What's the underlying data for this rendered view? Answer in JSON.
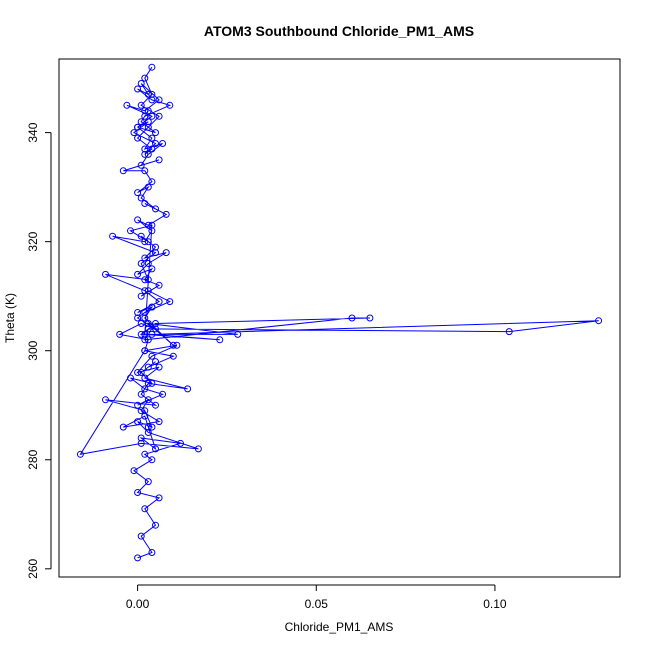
{
  "chart_data": {
    "type": "line",
    "markers": "open-circle",
    "title": "ATOM3 Southbound Chloride_PM1_AMS",
    "xlabel": "Chloride_PM1_AMS",
    "ylabel": "Theta (K)",
    "xlim": [
      -0.022,
      0.135
    ],
    "ylim": [
      258.5,
      353.5
    ],
    "xticks": [
      0.0,
      0.05,
      0.1
    ],
    "xtick_labels": [
      "0.00",
      "0.05",
      "0.10"
    ],
    "yticks": [
      260,
      280,
      300,
      320,
      340
    ],
    "ytick_labels": [
      "260",
      "280",
      "300",
      "320",
      "340"
    ],
    "grid": false,
    "legend": "none",
    "color": "#0000ff",
    "series": [
      {
        "x": [
          0.0,
          0.004,
          0.001,
          0.005,
          0.002,
          0.006,
          0.0,
          0.003,
          -0.001,
          0.004,
          0.002,
          0.012,
          0.001,
          0.005,
          0.003,
          0.002,
          -0.004,
          0.006,
          0.001,
          0.003,
          0.0,
          0.007,
          0.002,
          -0.002,
          0.004,
          0.001,
          0.005,
          0.003,
          0.01,
          0.002,
          -0.016,
          0.001,
          0.017,
          0.003,
          0.0,
          0.004,
          0.002,
          -0.009,
          0.005,
          0.001,
          0.003,
          0.014,
          0.002,
          0.006,
          0.0,
          0.004,
          0.011,
          0.002,
          0.003,
          -0.005,
          0.001,
          0.005,
          0.0,
          0.004,
          0.002,
          0.009,
          0.003,
          0.001,
          0.006,
          0.002,
          0.004,
          0.0,
          0.003,
          0.008,
          0.002,
          0.005,
          0.001,
          0.003,
          -0.002,
          0.004,
          0.002,
          0.023,
          0.004,
          0.129,
          0.104,
          0.003,
          0.002,
          0.06,
          0.065,
          0.005,
          0.001,
          0.028,
          0.003,
          0.01,
          0.002,
          0.004,
          0.0,
          0.006,
          0.002,
          -0.009,
          0.003,
          0.001,
          0.005,
          -0.007,
          0.002,
          0.004,
          0.0,
          0.003,
          0.008,
          0.002,
          0.005,
          0.001,
          0.003,
          0.0,
          0.004,
          0.002,
          -0.004,
          0.006,
          0.001,
          0.003,
          0.007,
          0.002,
          0.004,
          0.0,
          0.005,
          0.001,
          0.003,
          0.002,
          0.009,
          0.004,
          0.0,
          0.003,
          0.001,
          0.006,
          0.002,
          -0.003,
          0.004,
          0.0,
          0.003,
          -0.001,
          0.005,
          0.002,
          0.004,
          0.0,
          0.003,
          0.006,
          0.001,
          0.004,
          0.002,
          0.004
        ],
        "y": [
          262,
          263,
          266,
          268,
          271,
          273,
          274,
          276,
          278,
          280,
          281,
          283,
          284,
          282,
          286,
          288,
          286,
          287,
          289,
          291,
          290,
          292,
          293,
          295,
          294,
          296,
          298,
          297,
          299,
          300,
          281,
          283,
          282,
          285,
          287,
          286,
          289,
          291,
          290,
          292,
          294,
          293,
          295,
          297,
          296,
          299,
          301,
          300,
          302,
          303,
          305,
          304,
          306,
          308,
          307,
          309,
          311,
          310,
          312,
          313,
          315,
          314,
          316,
          318,
          317,
          319,
          321,
          320,
          322,
          323,
          303,
          302,
          303,
          305.5,
          303.5,
          304,
          302,
          306,
          306,
          305,
          303,
          303,
          305,
          301,
          306,
          308,
          307,
          309,
          311,
          314,
          313,
          316,
          318,
          321,
          320,
          322,
          324,
          323,
          325,
          327,
          326,
          328,
          330,
          329,
          331,
          333,
          333,
          335,
          334,
          336,
          338,
          337,
          339,
          341,
          340,
          342,
          344,
          343,
          345,
          346,
          348,
          347,
          349,
          346,
          344,
          345,
          343,
          341,
          342,
          340,
          338,
          336,
          337,
          339,
          341,
          343,
          345,
          347,
          350,
          352
        ]
      }
    ]
  }
}
